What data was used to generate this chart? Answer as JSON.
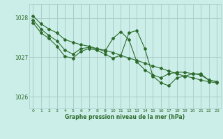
{
  "background_color": "#cceee8",
  "grid_color": "#aacccc",
  "line_color": "#2d6b2d",
  "x_ticks": [
    0,
    1,
    2,
    3,
    4,
    5,
    6,
    7,
    8,
    9,
    10,
    11,
    12,
    13,
    14,
    15,
    16,
    17,
    18,
    19,
    20,
    21,
    22,
    23
  ],
  "ylim": [
    1025.7,
    1028.35
  ],
  "yticks": [
    1026,
    1027,
    1028
  ],
  "xlabel": "Graphe pression niveau de la mer (hPa)",
  "line1": [
    1028.05,
    1027.85,
    1027.72,
    1027.62,
    1027.45,
    1027.38,
    1027.32,
    1027.28,
    1027.22,
    1027.18,
    1027.12,
    1027.05,
    1026.98,
    1026.92,
    1026.85,
    1026.78,
    1026.72,
    1026.65,
    1026.58,
    1026.52,
    1026.48,
    1026.42,
    1026.38,
    1026.35
  ],
  "line2": [
    1027.95,
    1027.72,
    1027.55,
    1027.42,
    1027.18,
    1027.08,
    1027.22,
    1027.25,
    1027.22,
    1027.15,
    1027.48,
    1027.65,
    1027.45,
    1026.88,
    1026.68,
    1026.55,
    1026.48,
    1026.58,
    1026.62,
    1026.62,
    1026.58,
    1026.58,
    1026.42,
    1026.38
  ],
  "line3": [
    1027.88,
    1027.62,
    1027.48,
    1027.28,
    1027.02,
    1026.98,
    1027.15,
    1027.22,
    1027.18,
    1027.08,
    1026.98,
    1027.05,
    1027.62,
    1027.68,
    1027.22,
    1026.52,
    1026.35,
    1026.28,
    1026.48,
    1026.52,
    1026.58,
    1026.55,
    1026.42,
    1026.38
  ]
}
